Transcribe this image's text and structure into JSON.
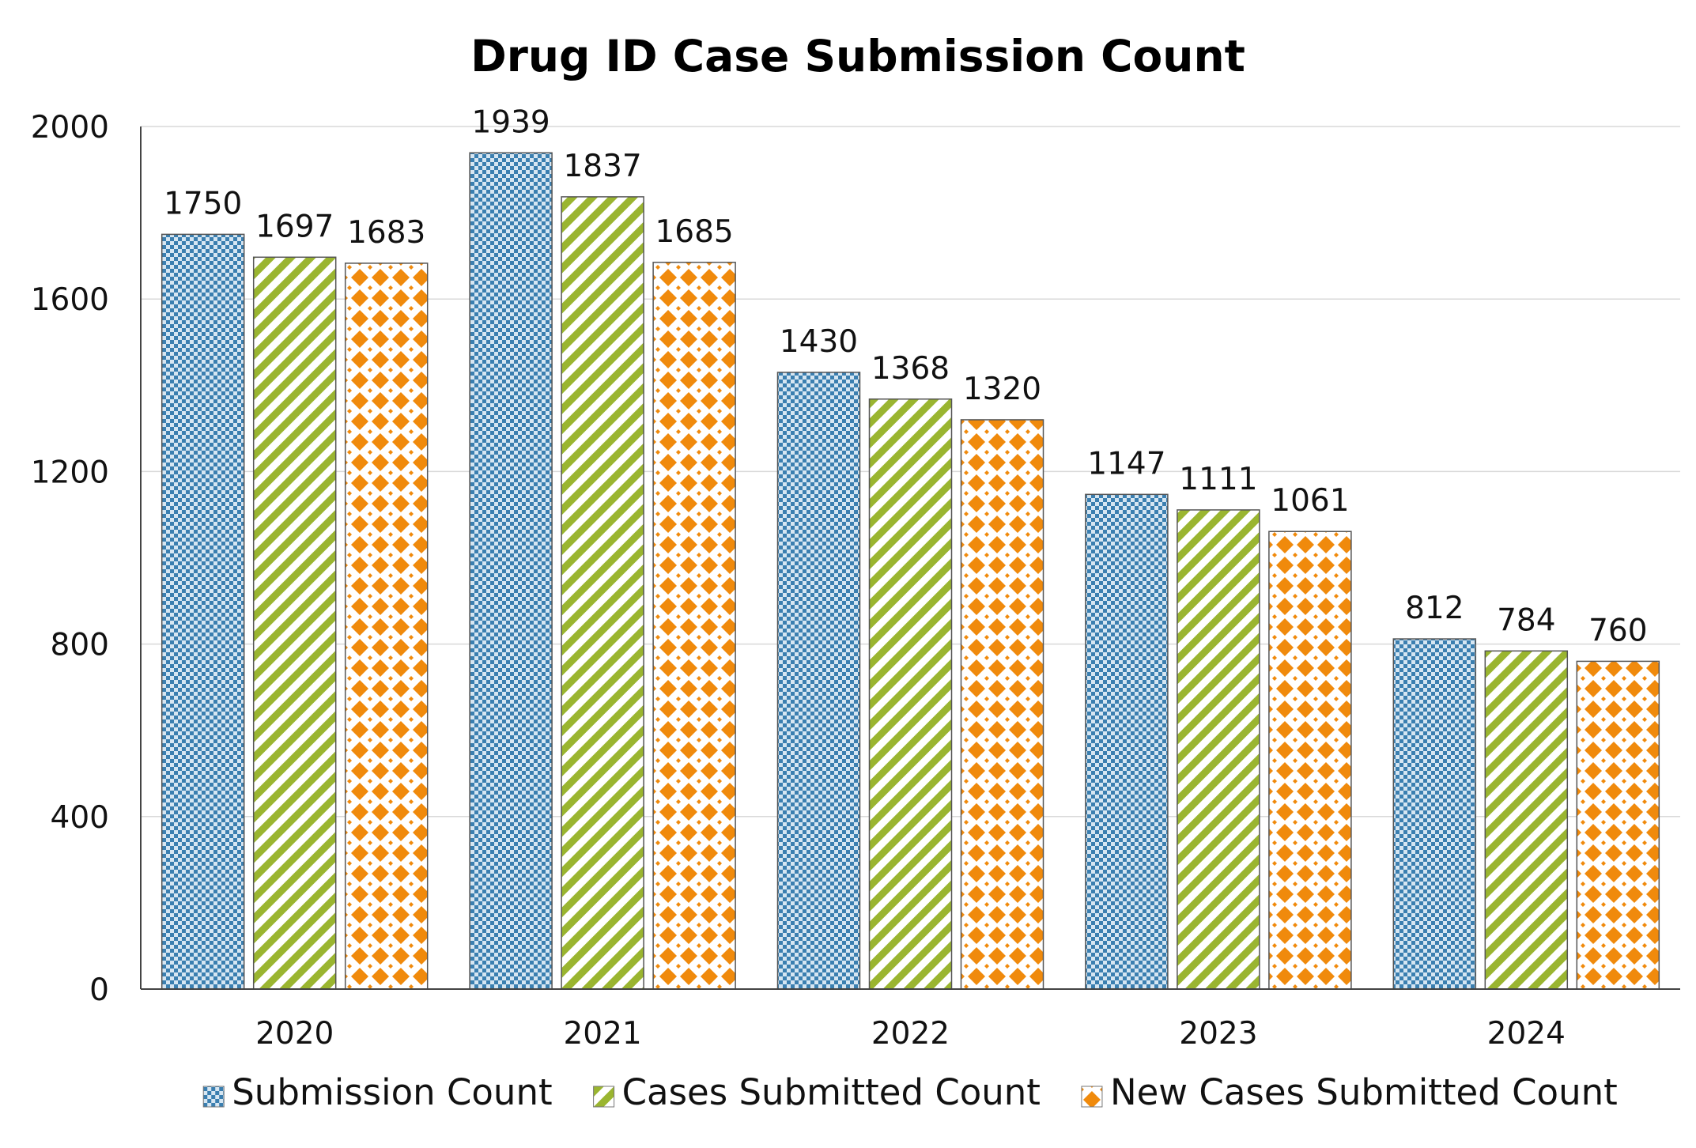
{
  "chart_data": {
    "type": "bar",
    "title": "Drug ID Case Submission Count",
    "xlabel": "",
    "ylabel": "",
    "categories": [
      "2020",
      "2021",
      "2022",
      "2023",
      "2024"
    ],
    "series": [
      {
        "name": "Submission Count",
        "values": [
          1750,
          1939,
          1430,
          1147,
          812
        ],
        "color": "#3b7fb0",
        "pattern": "checker"
      },
      {
        "name": "Cases Submitted Count",
        "values": [
          1697,
          1837,
          1368,
          1111,
          784
        ],
        "color": "#9ab530",
        "pattern": "diagonal-stripes"
      },
      {
        "name": "New Cases Submitted Count",
        "values": [
          1683,
          1685,
          1320,
          1061,
          760
        ],
        "color": "#f08a0c",
        "pattern": "diamonds"
      }
    ],
    "ylim": [
      0,
      2000
    ],
    "yticks": [
      0,
      400,
      800,
      1200,
      1600,
      2000
    ],
    "grid": true,
    "legend": "bottom",
    "data_labels": true
  }
}
